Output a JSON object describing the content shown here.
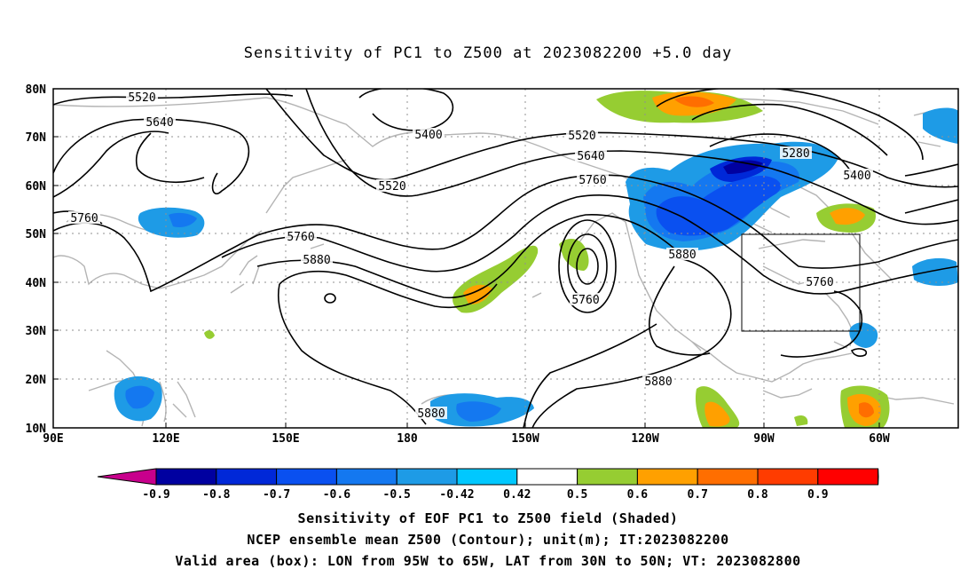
{
  "title": "Sensitivity of PC1 to Z500 at 2023082200 +5.0 day",
  "lat_labels": [
    "80N",
    "70N",
    "60N",
    "50N",
    "40N",
    "30N",
    "20N",
    "10N"
  ],
  "lon_labels": [
    "90E",
    "120E",
    "150E",
    "180",
    "150W",
    "120W",
    "90W",
    "60W"
  ],
  "contour_labels": [
    {
      "text": "5520"
    },
    {
      "text": "5640"
    },
    {
      "text": "5400"
    },
    {
      "text": "5520"
    },
    {
      "text": "5520"
    },
    {
      "text": "5640"
    },
    {
      "text": "5760"
    },
    {
      "text": "5280"
    },
    {
      "text": "5400"
    },
    {
      "text": "5760"
    },
    {
      "text": "5760"
    },
    {
      "text": "5880"
    },
    {
      "text": "5760"
    },
    {
      "text": "5880"
    },
    {
      "text": "5760"
    },
    {
      "text": "5880"
    },
    {
      "text": "5880"
    }
  ],
  "colorbar": {
    "tick_labels": [
      "-0.9",
      "-0.8",
      "-0.7",
      "-0.6",
      "-0.5",
      "-0.42",
      "0.42",
      "0.5",
      "0.6",
      "0.7",
      "0.8",
      "0.9"
    ],
    "colors": [
      "#c8008c",
      "#0000a0",
      "#0028d8",
      "#0a50f0",
      "#1478f0",
      "#1e9be6",
      "#00c8ff",
      "#ffffff",
      "#96cd32",
      "#ffa000",
      "#ff6e00",
      "#ff3c00",
      "#ff0000",
      "#ff96c8"
    ]
  },
  "captions": [
    "Sensitivity of EOF PC1 to Z500 field (Shaded)",
    "NCEP ensemble mean Z500 (Contour); unit(m); IT:2023082200",
    "Valid area (box): LON from 95W to 65W, LAT from 30N to 50N; VT: 2023082800"
  ]
}
